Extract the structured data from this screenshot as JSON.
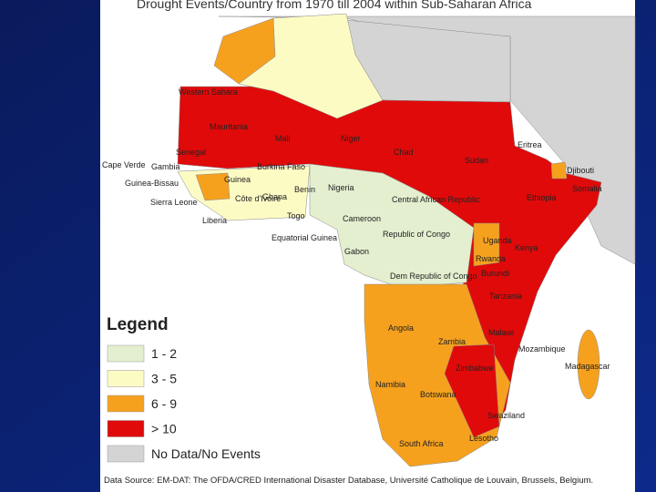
{
  "title": "Drought Events/Country from 1970 till 2004 within Sub-Saharan Africa",
  "legend": {
    "title": "Legend",
    "items": [
      {
        "label": "1 - 2",
        "color": "#e3efcf"
      },
      {
        "label": "3 - 5",
        "color": "#fdfbc4"
      },
      {
        "label": "6 - 9",
        "color": "#f6a11e"
      },
      {
        "label": "> 10",
        "color": "#e00a0a"
      },
      {
        "label": "No Data/No Events",
        "color": "#d4d4d4"
      }
    ]
  },
  "countries": [
    "Western Sahara",
    "Mauritania",
    "Mali",
    "Niger",
    "Chad",
    "Sudan",
    "Eritrea",
    "Djibouti",
    "Somalia",
    "Ethiopia",
    "Senegal",
    "Cape Verde",
    "Gambia",
    "Burkina Faso",
    "Guinea-Bissau",
    "Guinea",
    "Sierra Leone",
    "Côte d'Ivoire",
    "Ghana",
    "Benin",
    "Nigeria",
    "Togo",
    "Liberia",
    "Central African Republic",
    "Cameroon",
    "Equatorial Guinea",
    "Republic of Congo",
    "Gabon",
    "Dem Republic of Congo",
    "Uganda",
    "Kenya",
    "Rwanda",
    "Burundi",
    "Tanzania",
    "Angola",
    "Malawi",
    "Zambia",
    "Mozambique",
    "Madagascar",
    "Zimbabwe",
    "Namibia",
    "Botswana",
    "Swaziland",
    "Lesotho",
    "South Africa"
  ],
  "source": "Data Source:  EM-DAT: The OFDA/CRED International Disaster Database, Université Catholique de Louvain, Brussels, Belgium."
}
